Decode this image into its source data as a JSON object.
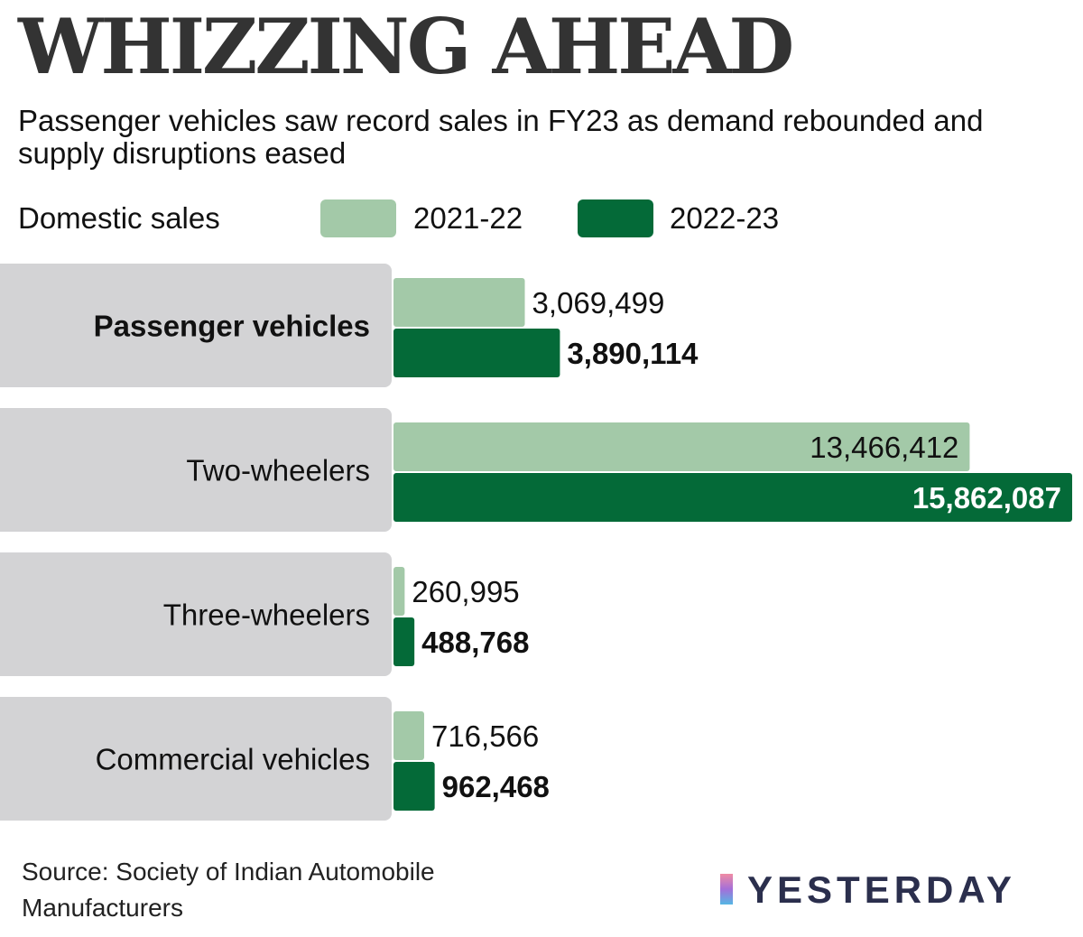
{
  "header": {
    "title": "WHIZZING AHEAD",
    "subtitle": "Passenger vehicles saw record sales in FY23 as demand rebounded and supply disruptions eased"
  },
  "legend": {
    "label": "Domestic sales",
    "series_2021": "2021-22",
    "series_2022": "2022-23"
  },
  "colors": {
    "series_2021": "#a3c9a8",
    "series_2022": "#046a38",
    "category_panel": "#d3d3d5"
  },
  "chart_data": {
    "type": "bar",
    "orientation": "horizontal",
    "title": "WHIZZING AHEAD",
    "subtitle": "Passenger vehicles saw record sales in FY23 as demand rebounded and supply disruptions eased",
    "legend_title": "Domestic sales",
    "categories": [
      "Passenger vehicles",
      "Two-wheelers",
      "Three-wheelers",
      "Commercial vehicles"
    ],
    "series": [
      {
        "name": "2021-22",
        "values": [
          3069499,
          13466412,
          260995,
          716566
        ],
        "labels": [
          "3,069,499",
          "13,466,412",
          "260,995",
          "716,566"
        ]
      },
      {
        "name": "2022-23",
        "values": [
          3890114,
          15862087,
          488768,
          962468
        ],
        "labels": [
          "3,890,114",
          "15,862,087",
          "488,768",
          "962,468"
        ]
      }
    ],
    "xlim": [
      0,
      15862087
    ],
    "grid": false,
    "legend_position": "top"
  },
  "footer": {
    "source": "Source: Society of Indian Automobile Manufacturers",
    "brand": "YESTERDAY"
  }
}
